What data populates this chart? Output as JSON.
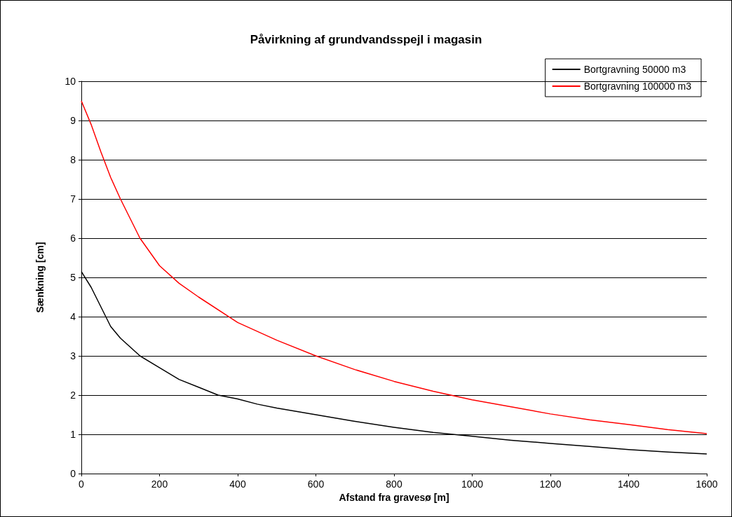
{
  "chart_data": {
    "type": "line",
    "title": "Påvirkning af grundvandsspejl i magasin",
    "xlabel": "Afstand fra gravesø [m]",
    "ylabel": "Sænkning [cm]",
    "xlim": [
      0,
      1600
    ],
    "xticks": [
      0,
      200,
      400,
      600,
      800,
      1000,
      1200,
      1400,
      1600
    ],
    "ylim": [
      0,
      10
    ],
    "yticks": [
      0,
      1,
      2,
      3,
      4,
      5,
      6,
      7,
      8,
      9,
      10
    ],
    "grid": "y",
    "legend": "top right",
    "marker": "none",
    "line_style": "solid",
    "series": [
      {
        "name": "Bortgravning 50000 m3",
        "color": "#000000",
        "x": [
          0,
          25,
          50,
          75,
          100,
          150,
          200,
          250,
          300,
          350,
          400,
          450,
          500,
          600,
          700,
          800,
          900,
          1000,
          1100,
          1200,
          1300,
          1400,
          1500,
          1600
        ],
        "values": [
          5.15,
          4.75,
          4.25,
          3.75,
          3.45,
          3.0,
          2.7,
          2.4,
          2.2,
          2.0,
          1.9,
          1.77,
          1.67,
          1.5,
          1.33,
          1.18,
          1.05,
          0.95,
          0.85,
          0.77,
          0.69,
          0.61,
          0.55,
          0.5
        ]
      },
      {
        "name": "Bortgravning 100000 m3",
        "color": "#ff0000",
        "x": [
          0,
          25,
          50,
          75,
          100,
          150,
          200,
          250,
          300,
          400,
          500,
          600,
          700,
          800,
          900,
          1000,
          1100,
          1200,
          1300,
          1400,
          1500,
          1600
        ],
        "values": [
          9.5,
          8.9,
          8.2,
          7.55,
          7.0,
          6.0,
          5.3,
          4.85,
          4.5,
          3.85,
          3.4,
          3.0,
          2.65,
          2.35,
          2.1,
          1.88,
          1.7,
          1.52,
          1.37,
          1.25,
          1.12,
          1.02
        ]
      }
    ]
  }
}
